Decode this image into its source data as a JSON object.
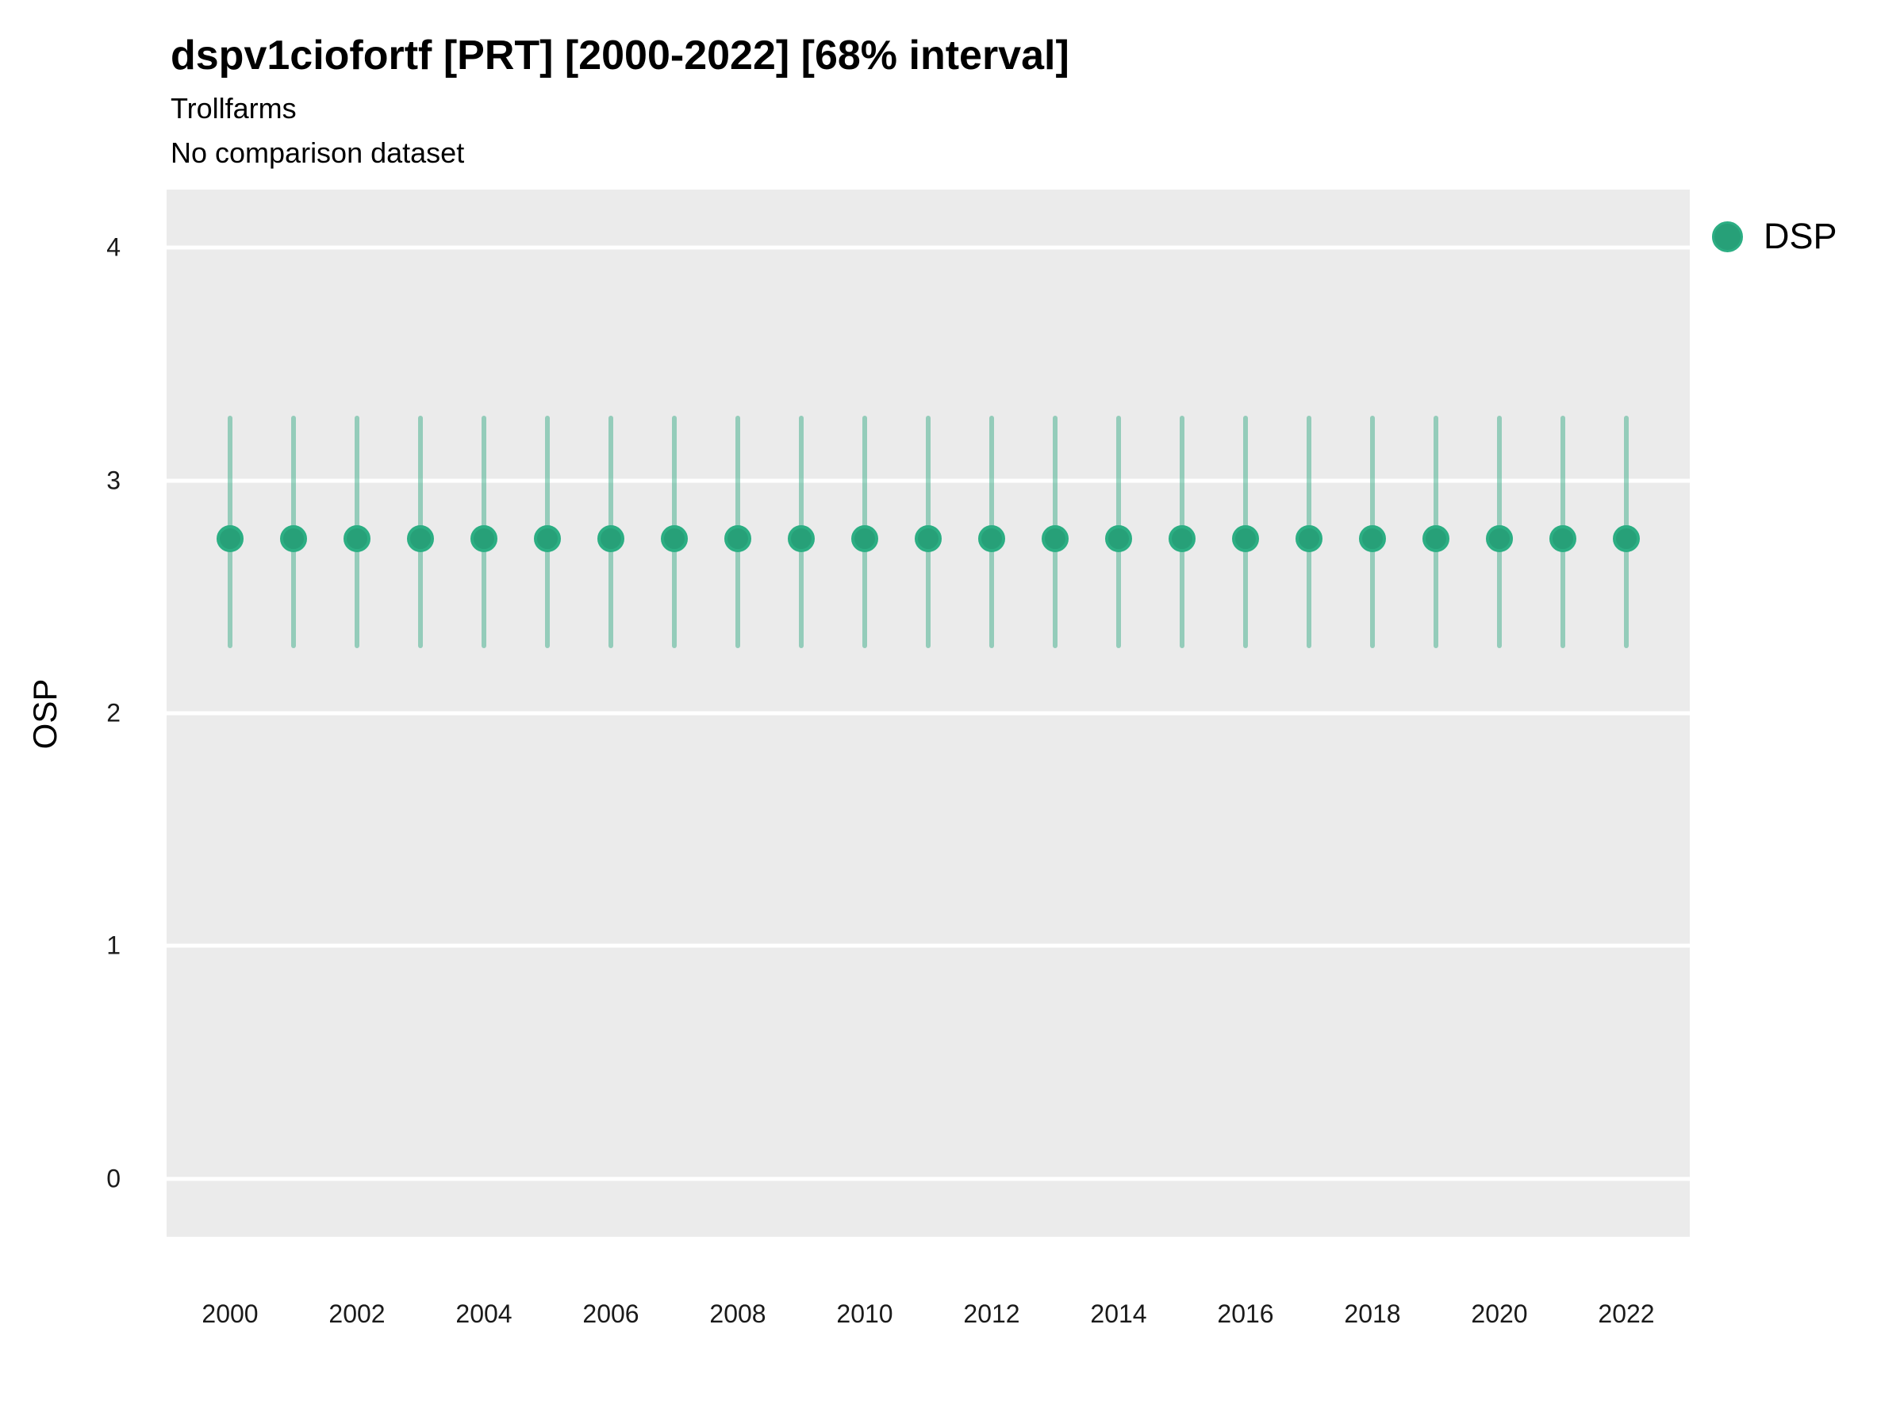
{
  "header": {
    "title": "dspv1ciofortf [PRT] [2000-2022] [68% interval]",
    "subtitle": "Trollfarms",
    "note": "No comparison dataset"
  },
  "legend": {
    "position": "right-top",
    "items": [
      {
        "label": "DSP",
        "marker": "circle-icon",
        "color": "#27A078"
      }
    ]
  },
  "colors": {
    "panel_background": "#EBEBEB",
    "gridline": "#FFFFFF",
    "point_fill": "#27A078",
    "point_stroke": "#2CAE83",
    "interval_line": "rgba(43,167,126,0.45)",
    "tick_text": "#1a1a1a",
    "title_text": "#000000"
  },
  "chart_data": {
    "type": "scatter",
    "subtype": "point-interval",
    "title": "dspv1ciofortf [PRT] [2000-2022] [68% interval]",
    "subtitle": "Trollfarms",
    "note": "No comparison dataset",
    "interval_label": "68% interval",
    "xlabel": "",
    "ylabel": "OSP",
    "x": [
      2000,
      2001,
      2002,
      2003,
      2004,
      2005,
      2006,
      2007,
      2008,
      2009,
      2010,
      2011,
      2012,
      2013,
      2014,
      2015,
      2016,
      2017,
      2018,
      2019,
      2020,
      2021,
      2022
    ],
    "series": [
      {
        "name": "DSP",
        "means": [
          2.75,
          2.75,
          2.75,
          2.75,
          2.75,
          2.75,
          2.75,
          2.75,
          2.75,
          2.75,
          2.75,
          2.75,
          2.75,
          2.75,
          2.75,
          2.75,
          2.75,
          2.75,
          2.75,
          2.75,
          2.75,
          2.75,
          2.75
        ],
        "lowers": [
          2.28,
          2.28,
          2.28,
          2.28,
          2.28,
          2.28,
          2.28,
          2.28,
          2.28,
          2.28,
          2.28,
          2.28,
          2.28,
          2.28,
          2.28,
          2.28,
          2.28,
          2.28,
          2.28,
          2.28,
          2.28,
          2.28,
          2.28
        ],
        "uppers": [
          3.28,
          3.28,
          3.28,
          3.28,
          3.28,
          3.28,
          3.28,
          3.28,
          3.28,
          3.28,
          3.28,
          3.28,
          3.28,
          3.28,
          3.28,
          3.28,
          3.28,
          3.28,
          3.28,
          3.28,
          3.28,
          3.28,
          3.28
        ]
      }
    ],
    "xlim": [
      1999,
      2023
    ],
    "ylim": [
      -0.25,
      4.25
    ],
    "xticks": [
      2000,
      2002,
      2004,
      2006,
      2008,
      2010,
      2012,
      2014,
      2016,
      2018,
      2020,
      2022
    ],
    "yticks": [
      0,
      1,
      2,
      3,
      4
    ],
    "grid": "horizontal-major-only",
    "legend_position": "right-top",
    "legend_entries": [
      "DSP"
    ]
  }
}
